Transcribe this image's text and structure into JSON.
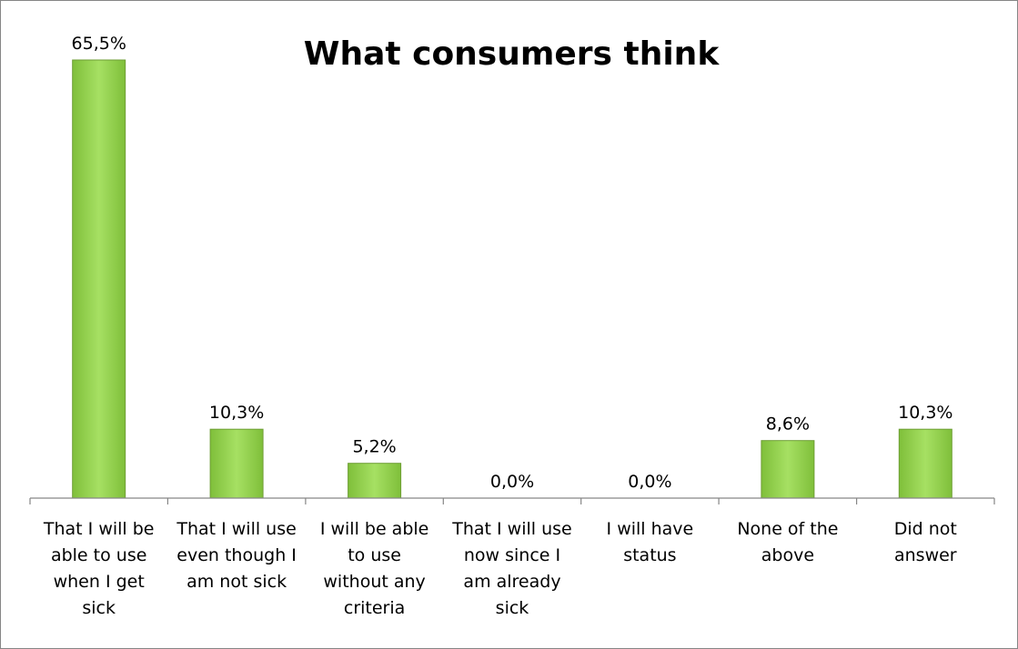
{
  "chart_data": {
    "type": "bar",
    "title": "What consumers think",
    "xlabel": "",
    "ylabel": "",
    "ylim": [
      0,
      70
    ],
    "grid": false,
    "legend": "none",
    "categories": [
      [
        "That I will be",
        "able to use",
        "when I get",
        "sick"
      ],
      [
        "That I will use",
        "even though I",
        "am not sick"
      ],
      [
        "I will be able",
        "to use",
        "without any",
        "criteria"
      ],
      [
        "That I will use",
        "now since I",
        "am already",
        "sick"
      ],
      [
        "I will have",
        "status"
      ],
      [
        "None of the",
        "above"
      ],
      [
        "Did not",
        "answer"
      ]
    ],
    "values": [
      65.5,
      10.3,
      5.2,
      0.0,
      0.0,
      8.6,
      10.3
    ],
    "data_labels": [
      "65,5%",
      "10,3%",
      "5,2%",
      "0,0%",
      "0,0%",
      "8,6%",
      "10,3%"
    ],
    "colors": {
      "bar_fill": "#9ED85B",
      "bar_stroke": "#6E9E35",
      "axis": "#868686"
    }
  }
}
